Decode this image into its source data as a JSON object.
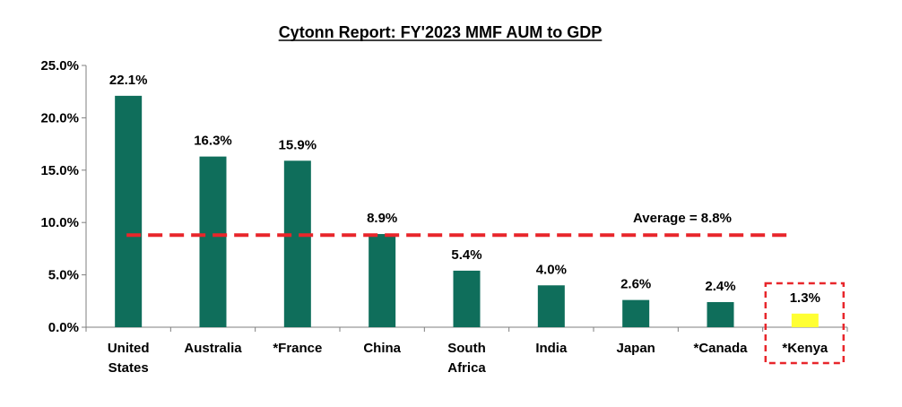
{
  "chart_data": {
    "type": "bar",
    "title": "Cytonn Report: FY'2023 MMF AUM to GDP",
    "categories": [
      "United States",
      "Australia",
      "*France",
      "China",
      "South Africa",
      "India",
      "Japan",
      "*Canada",
      "*Kenya"
    ],
    "category_lines": [
      [
        "United",
        "States"
      ],
      [
        "Australia"
      ],
      [
        "*France"
      ],
      [
        "China"
      ],
      [
        "South",
        "Africa"
      ],
      [
        "India"
      ],
      [
        "Japan"
      ],
      [
        "*Canada"
      ],
      [
        "*Kenya"
      ]
    ],
    "values": [
      22.1,
      16.3,
      15.9,
      8.9,
      5.4,
      4.0,
      2.6,
      2.4,
      1.3
    ],
    "data_labels": [
      "22.1%",
      "16.3%",
      "15.9%",
      "8.9%",
      "5.4%",
      "4.0%",
      "2.6%",
      "2.4%",
      "1.3%"
    ],
    "ylim": [
      0,
      25
    ],
    "yticks": [
      0,
      5,
      10,
      15,
      20,
      25
    ],
    "ytick_labels": [
      "0.0%",
      "5.0%",
      "10.0%",
      "15.0%",
      "20.0%",
      "25.0%"
    ],
    "grid": false,
    "legend": "none",
    "average": {
      "value": 8.8,
      "label": "Average = 8.8%"
    },
    "highlight_category": "*Kenya",
    "colors": {
      "bar": "#0f6e5b",
      "highlight_bar": "#ffff33",
      "average_line": "#e8262b",
      "highlight_box": "#e8262b",
      "axis": "#7f7f7f"
    }
  }
}
